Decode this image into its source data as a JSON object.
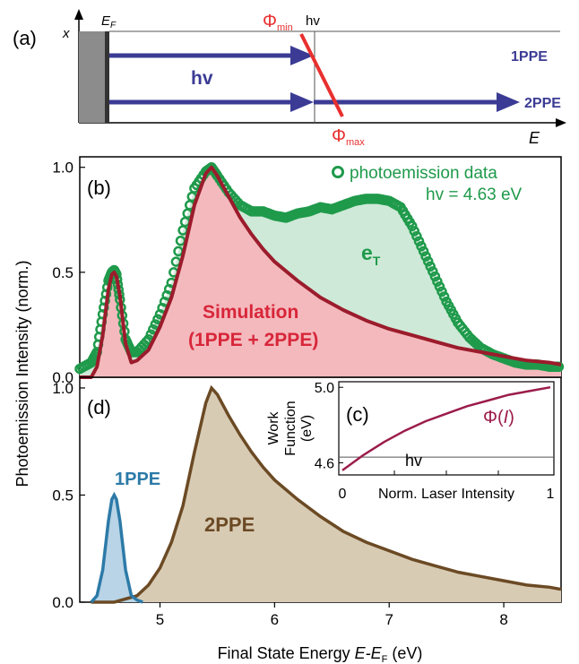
{
  "panel_a": {
    "label": "(a)",
    "x_axis_label": "x",
    "y_axis_label": "E",
    "ef_label": "E",
    "ef_sub": "F",
    "hv_label": "hv",
    "arrow_label": "hv",
    "phi_min_label": "Φ",
    "phi_min_sub": "min",
    "phi_max_label": "Φ",
    "phi_max_sub": "max",
    "ppe1_label": "1PPE",
    "ppe2_label": "2PPE",
    "colors": {
      "arrow": "#3b3b95",
      "phi": "#e8302f",
      "metal": "#8c8c8c"
    }
  },
  "chart_data": [
    {
      "panel": "(b)",
      "type": "area",
      "ylim": [
        0,
        1.05
      ],
      "xlim": [
        4.3,
        8.5
      ],
      "yticks": [
        "0.0",
        "0.5",
        "1.0"
      ],
      "ylabel": "Photoemission Intensity (norm.)",
      "legend": {
        "marker_label": "photoemission data",
        "sub_label": "hv = 4.63 eV",
        "position": "top-right"
      },
      "annotations": {
        "eT_main": "e",
        "eT_sub": "T",
        "sim_line1": "Simulation",
        "sim_line2": "(1PPE + 2PPE)"
      },
      "series": [
        {
          "name": "photoemission data",
          "color": "#1f9a4b",
          "x": [
            4.3,
            4.4,
            4.45,
            4.5,
            4.55,
            4.58,
            4.6,
            4.62,
            4.65,
            4.7,
            4.75,
            4.8,
            4.9,
            5.0,
            5.1,
            5.2,
            5.3,
            5.4,
            5.45,
            5.5,
            5.6,
            5.7,
            5.8,
            5.9,
            6.0,
            6.1,
            6.2,
            6.3,
            6.4,
            6.5,
            6.6,
            6.7,
            6.8,
            6.9,
            7.0,
            7.1,
            7.2,
            7.3,
            7.4,
            7.5,
            7.6,
            7.7,
            7.8,
            7.9,
            8.0,
            8.1,
            8.2,
            8.3,
            8.4,
            8.5
          ],
          "values": [
            0.04,
            0.07,
            0.12,
            0.3,
            0.46,
            0.5,
            0.51,
            0.49,
            0.37,
            0.18,
            0.12,
            0.12,
            0.18,
            0.3,
            0.45,
            0.7,
            0.9,
            0.98,
            1.0,
            0.96,
            0.88,
            0.82,
            0.79,
            0.79,
            0.77,
            0.76,
            0.78,
            0.79,
            0.81,
            0.8,
            0.82,
            0.84,
            0.85,
            0.85,
            0.84,
            0.81,
            0.72,
            0.6,
            0.48,
            0.36,
            0.26,
            0.19,
            0.14,
            0.11,
            0.09,
            0.07,
            0.06,
            0.06,
            0.05,
            0.05
          ]
        },
        {
          "name": "Simulation (1PPE + 2PPE)",
          "color": "#9b1c2c",
          "x": [
            4.3,
            4.4,
            4.45,
            4.5,
            4.55,
            4.58,
            4.6,
            4.62,
            4.65,
            4.7,
            4.75,
            4.8,
            4.9,
            5.0,
            5.1,
            5.2,
            5.3,
            5.4,
            5.45,
            5.5,
            5.6,
            5.7,
            5.8,
            5.9,
            6.0,
            6.2,
            6.4,
            6.6,
            6.8,
            7.0,
            7.2,
            7.4,
            7.6,
            7.8,
            8.0,
            8.2,
            8.4,
            8.5
          ],
          "values": [
            0.0,
            0.0,
            0.05,
            0.2,
            0.42,
            0.49,
            0.5,
            0.48,
            0.39,
            0.16,
            0.07,
            0.08,
            0.13,
            0.24,
            0.38,
            0.58,
            0.82,
            0.97,
            1.0,
            0.96,
            0.86,
            0.76,
            0.68,
            0.61,
            0.55,
            0.46,
            0.38,
            0.32,
            0.27,
            0.23,
            0.2,
            0.17,
            0.14,
            0.12,
            0.1,
            0.08,
            0.07,
            0.06
          ]
        }
      ]
    },
    {
      "panel": "(d)",
      "type": "area",
      "ylim": [
        0,
        1.05
      ],
      "xlim": [
        4.3,
        8.5
      ],
      "yticks": [
        "0.0",
        "0.5",
        "1.0"
      ],
      "xticks": [
        "5",
        "6",
        "7",
        "8"
      ],
      "xlabel_main": "Final State Energy ",
      "xlabel_var": "E-E",
      "xlabel_sub": "F",
      "xlabel_unit": " (eV)",
      "series": [
        {
          "name": "1PPE",
          "color": "#2c7aa8",
          "x": [
            4.4,
            4.45,
            4.5,
            4.55,
            4.58,
            4.6,
            4.62,
            4.65,
            4.7,
            4.75,
            4.8,
            4.85
          ],
          "values": [
            0.0,
            0.03,
            0.15,
            0.38,
            0.48,
            0.5,
            0.48,
            0.38,
            0.15,
            0.03,
            0.01,
            0.0
          ]
        },
        {
          "name": "2PPE",
          "color": "#6b4a24",
          "x": [
            4.4,
            4.6,
            4.8,
            4.9,
            5.0,
            5.1,
            5.2,
            5.3,
            5.4,
            5.45,
            5.5,
            5.6,
            5.7,
            5.8,
            5.9,
            6.0,
            6.2,
            6.4,
            6.6,
            6.8,
            7.0,
            7.2,
            7.4,
            7.6,
            7.8,
            8.0,
            8.2,
            8.4,
            8.5
          ],
          "values": [
            0.0,
            0.0,
            0.03,
            0.08,
            0.16,
            0.28,
            0.45,
            0.7,
            0.93,
            1.0,
            0.97,
            0.87,
            0.78,
            0.7,
            0.63,
            0.57,
            0.48,
            0.4,
            0.33,
            0.28,
            0.24,
            0.2,
            0.17,
            0.14,
            0.12,
            0.1,
            0.08,
            0.07,
            0.06
          ]
        }
      ]
    },
    {
      "panel": "(c)",
      "type": "line",
      "xlim": [
        0,
        1
      ],
      "ylim": [
        4.55,
        5.02
      ],
      "xticks": [
        "0",
        "1"
      ],
      "yticks": [
        "4.6",
        "5.0"
      ],
      "xlabel": "Norm. Laser Intensity",
      "ylabel_line1": "Work",
      "ylabel_line2": "Function",
      "ylabel_line3": "(eV)",
      "hv_value": 4.63,
      "hv_label": "hv",
      "curve_label_main": "Φ(",
      "curve_label_var": "I",
      "curve_label_end": ")",
      "series": [
        {
          "name": "Φ(I)",
          "color": "#9b1c4a",
          "x": [
            0,
            0.1,
            0.2,
            0.3,
            0.4,
            0.5,
            0.6,
            0.7,
            0.8,
            0.9,
            1.0
          ],
          "values": [
            4.56,
            4.64,
            4.71,
            4.77,
            4.82,
            4.86,
            4.9,
            4.93,
            4.96,
            4.98,
            5.0
          ]
        }
      ]
    }
  ]
}
